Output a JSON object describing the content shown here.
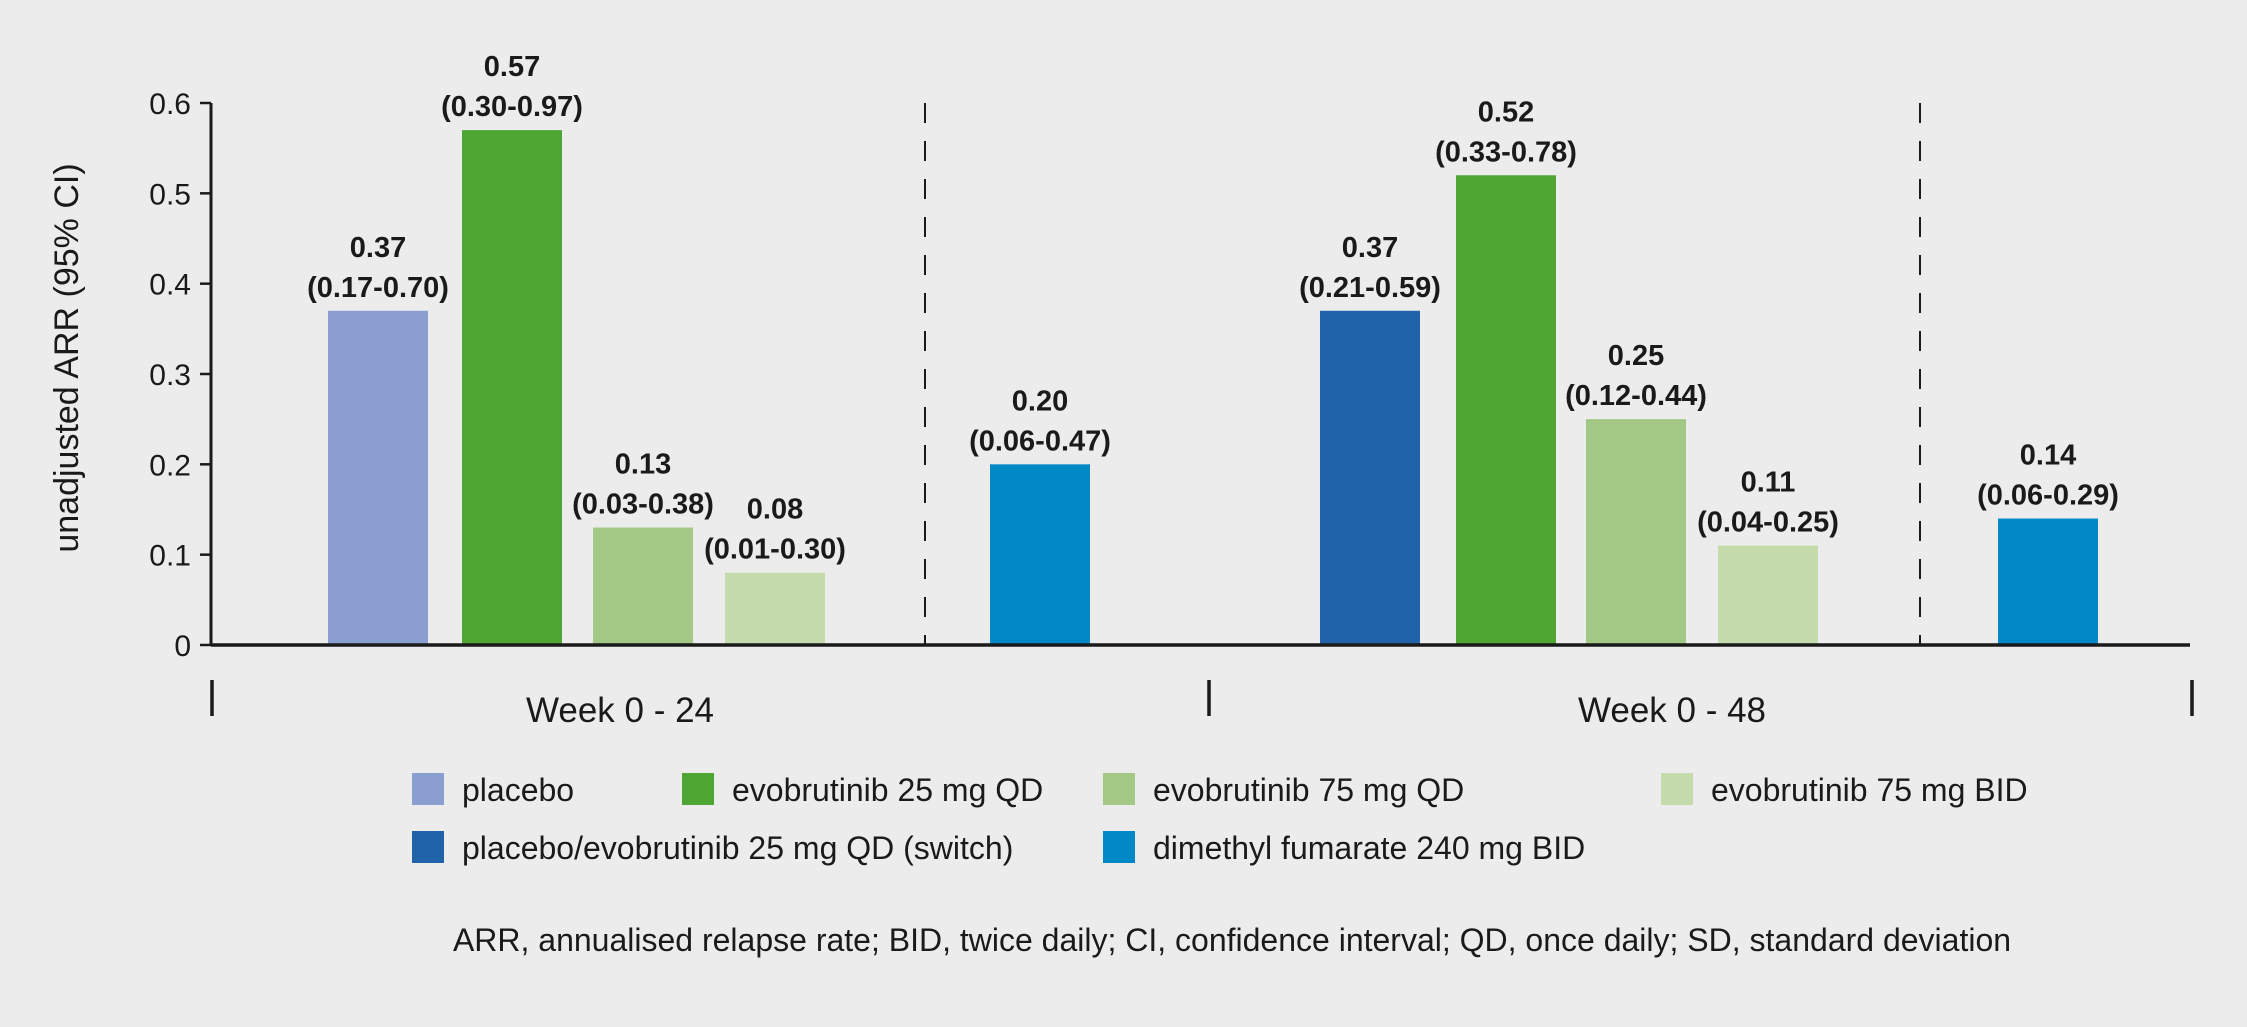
{
  "chart_data": {
    "type": "bar",
    "title": "",
    "xlabel": "",
    "ylabel": "unadjusted ARR (95% CI)",
    "ylim": [
      0,
      0.6
    ],
    "yticks": [
      "0",
      "0.1",
      "0.2",
      "0.3",
      "0.4",
      "0.5",
      "0.6"
    ],
    "groups": [
      {
        "label": "Week 0 - 24",
        "bars": [
          {
            "series": "placebo",
            "value": 0.37,
            "value_label": "0.37",
            "ci_label": "(0.17-0.70)"
          },
          {
            "series": "evobrutinib 25 mg QD",
            "value": 0.57,
            "value_label": "0.57",
            "ci_label": "(0.30-0.97)"
          },
          {
            "series": "evobrutinib 75 mg QD",
            "value": 0.13,
            "value_label": "0.13",
            "ci_label": "(0.03-0.38)"
          },
          {
            "series": "evobrutinib 75 mg BID",
            "value": 0.08,
            "value_label": "0.08",
            "ci_label": "(0.01-0.30)"
          },
          {
            "series": "dimethyl fumarate 240 mg BID",
            "value": 0.2,
            "value_label": "0.20",
            "ci_label": "(0.06-0.47)"
          }
        ]
      },
      {
        "label": "Week 0 - 48",
        "bars": [
          {
            "series": "placebo/evobrutinib 25 mg QD (switch)",
            "value": 0.37,
            "value_label": "0.37",
            "ci_label": "(0.21-0.59)"
          },
          {
            "series": "evobrutinib 25 mg QD",
            "value": 0.52,
            "value_label": "0.52",
            "ci_label": "(0.33-0.78)"
          },
          {
            "series": "evobrutinib 75 mg QD",
            "value": 0.25,
            "value_label": "0.25",
            "ci_label": "(0.12-0.44)"
          },
          {
            "series": "evobrutinib 75 mg BID",
            "value": 0.11,
            "value_label": "0.11",
            "ci_label": "(0.04-0.25)"
          },
          {
            "series": "dimethyl fumarate 240 mg BID",
            "value": 0.14,
            "value_label": "0.14",
            "ci_label": "(0.06-0.29)"
          }
        ]
      }
    ],
    "legend": [
      {
        "label": "placebo",
        "color": "#8a9fcf"
      },
      {
        "label": "evobrutinib 25 mg QD",
        "color": "#4ea531"
      },
      {
        "label": "evobrutinib 75 mg QD",
        "color": "#a3c785"
      },
      {
        "label": "evobrutinib 75 mg BID",
        "color": "#c4dcac"
      },
      {
        "label": "placebo/evobrutinib 25 mg QD (switch)",
        "color": "#2163a8"
      },
      {
        "label": "dimethyl fumarate 240 mg BID",
        "color": "#0288c7"
      }
    ],
    "grid": false,
    "legend_position": "bottom"
  },
  "footnote": "ARR, annualised relapse rate; BID, twice daily; CI, confidence interval; QD, once daily; SD, standard deviation"
}
